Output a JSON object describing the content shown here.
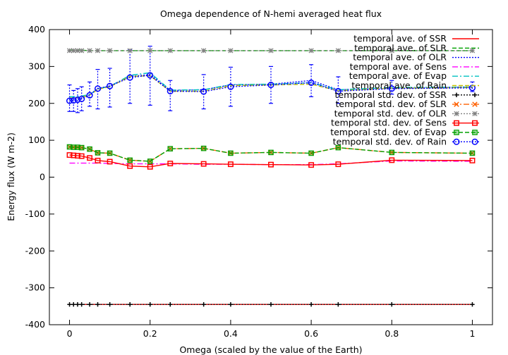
{
  "chart_data": {
    "type": "line",
    "title": "Omega dependence of N-hemi averaged heat flux",
    "xlabel": "Omega (scaled by the value of the Earth)",
    "ylabel": "Energy flux (W m-2)",
    "xlim": [
      -0.05,
      1.05
    ],
    "ylim": [
      -400,
      400
    ],
    "xticks": [
      0,
      0.2,
      0.4,
      0.6,
      0.8,
      1
    ],
    "xtick_labels": [
      "0",
      "0.2",
      "0.4",
      "0.6",
      "0.8",
      "1"
    ],
    "yticks": [
      -400,
      -300,
      -200,
      -100,
      0,
      100,
      200,
      300,
      400
    ],
    "ytick_labels": [
      "-400",
      "-300",
      "-200",
      "-100",
      "0",
      "100",
      "200",
      "300",
      "400"
    ],
    "legend_position": "top-right",
    "grid": false,
    "x": [
      0,
      0.01,
      0.02,
      0.03,
      0.05,
      0.07,
      0.1,
      0.15,
      0.2,
      0.25,
      0.333,
      0.4,
      0.5,
      0.6,
      0.667,
      0.8,
      1.0
    ],
    "series": [
      {
        "name": "temporal ave. of SSR",
        "color": "#ff0000",
        "style": "solid",
        "marker": "none",
        "values": [
          -345,
          -345,
          -345,
          -345,
          -345,
          -345,
          -345,
          -345,
          -345,
          -345,
          -345,
          -345,
          -345,
          -345,
          -345,
          -345,
          -345
        ]
      },
      {
        "name": "temporal ave. of SLR",
        "color": "#00a000",
        "style": "dash",
        "marker": "none",
        "values": [
          344,
          344,
          344,
          344,
          343,
          343,
          343,
          343,
          343,
          343,
          343,
          343,
          343,
          343,
          343,
          343,
          343
        ]
      },
      {
        "name": "temporal ave. of OLR",
        "color": "#0000ff",
        "style": "dot",
        "marker": "none",
        "values": [
          213,
          213,
          214,
          215,
          224,
          240,
          247,
          273,
          278,
          235,
          237,
          250,
          252,
          262,
          237,
          240,
          245
        ]
      },
      {
        "name": "temporal ave. of Sens",
        "color": "#ff00ff",
        "style": "dashdot",
        "marker": "none",
        "values": [
          38,
          38,
          38,
          38,
          38,
          38,
          37,
          36,
          36,
          36,
          35,
          35,
          34,
          34,
          36,
          44,
          43
        ]
      },
      {
        "name": "temporal ave. of Evap",
        "color": "#00c0c0",
        "style": "dashdot",
        "marker": "none",
        "values": [
          218,
          218,
          219,
          220,
          224,
          239,
          246,
          276,
          283,
          236,
          237,
          251,
          252,
          256,
          237,
          243,
          244
        ]
      },
      {
        "name": "temporal ave. of Rain",
        "color": "#c0c000",
        "style": "dash",
        "marker": "none",
        "values": [
          215,
          215,
          216,
          217,
          222,
          238,
          245,
          273,
          275,
          233,
          233,
          248,
          250,
          252,
          234,
          241,
          243
        ]
      },
      {
        "name": "temporal std. dev. of SSR",
        "color": "#000000",
        "style": "dot",
        "marker": "plus",
        "values": [
          -345,
          -345,
          -345,
          -345,
          -345,
          -345,
          -345,
          -345,
          -345,
          -345,
          -345,
          -345,
          -345,
          -345,
          -345,
          -345,
          -345
        ]
      },
      {
        "name": "temporal std. dev. of SLR",
        "color": "#ff6000",
        "style": "dashdot",
        "marker": "cross",
        "values": [
          82,
          81,
          81,
          80,
          76,
          66,
          65,
          46,
          43,
          77,
          78,
          65,
          67,
          65,
          80,
          67,
          65
        ]
      },
      {
        "name": "temporal std. dev. of OLR",
        "color": "#808080",
        "style": "dot",
        "marker": "star",
        "values": [
          343,
          343,
          343,
          343,
          343,
          343,
          343,
          343,
          343,
          343,
          343,
          343,
          343,
          343,
          343,
          343,
          343
        ]
      },
      {
        "name": "temporal std. dev. of Sens",
        "color": "#ff0000",
        "style": "solid",
        "marker": "square",
        "values": [
          60,
          59,
          58,
          57,
          52,
          45,
          42,
          30,
          28,
          37,
          36,
          35,
          34,
          33,
          35,
          46,
          45
        ]
      },
      {
        "name": "temporal std. dev. of Evap",
        "color": "#00a000",
        "style": "dash",
        "marker": "box",
        "values": [
          82,
          81,
          81,
          80,
          76,
          66,
          65,
          46,
          43,
          77,
          78,
          65,
          67,
          65,
          80,
          67,
          65
        ]
      },
      {
        "name": "temporal std. dev. of Rain",
        "color": "#0000ff",
        "style": "dot",
        "marker": "circle",
        "values": [
          207,
          208,
          210,
          212,
          222,
          240,
          247,
          270,
          276,
          233,
          232,
          245,
          250,
          256,
          233,
          240,
          242
        ]
      }
    ],
    "error_bars": {
      "series": "temporal ave. of OLR",
      "low": [
        178,
        178,
        175,
        180,
        192,
        185,
        190,
        200,
        195,
        180,
        185,
        192,
        200,
        218,
        200,
        225,
        232
      ],
      "high": [
        250,
        235,
        240,
        245,
        258,
        292,
        295,
        345,
        355,
        262,
        278,
        298,
        300,
        305,
        272,
        262,
        258
      ]
    }
  }
}
